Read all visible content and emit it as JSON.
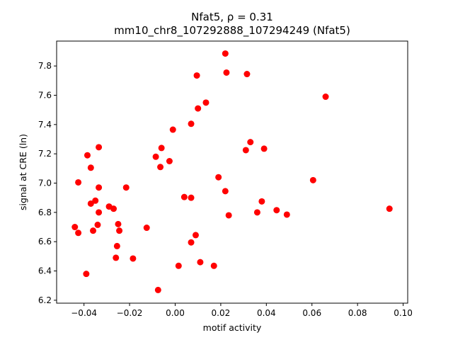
{
  "chart_data": {
    "type": "scatter",
    "title_line1": "Nfat5, ρ = 0.31",
    "title_line2": "mm10_chr8_107292888_107294249 (Nfat5)",
    "xlabel": "motif activity",
    "ylabel": "signal at CRE (ln)",
    "xlim": [
      -0.052,
      0.102
    ],
    "ylim": [
      6.18,
      7.97
    ],
    "xticks": [
      -0.04,
      -0.02,
      0.0,
      0.02,
      0.04,
      0.06,
      0.08,
      0.1
    ],
    "xtick_labels": [
      "−0.04",
      "−0.02",
      "0.00",
      "0.02",
      "0.04",
      "0.06",
      "0.08",
      "0.10"
    ],
    "yticks": [
      6.2,
      6.4,
      6.6,
      6.8,
      7.0,
      7.2,
      7.4,
      7.6,
      7.8
    ],
    "ytick_labels": [
      "6.2",
      "6.4",
      "6.6",
      "6.8",
      "7.0",
      "7.2",
      "7.4",
      "7.6",
      "7.8"
    ],
    "marker_color": "#ff0000",
    "grid": false,
    "points": [
      {
        "x": 0.022,
        "y": 7.885
      },
      {
        "x": 0.0225,
        "y": 7.755
      },
      {
        "x": 0.0315,
        "y": 7.745
      },
      {
        "x": 0.0095,
        "y": 7.735
      },
      {
        "x": 0.066,
        "y": 7.59
      },
      {
        "x": 0.0135,
        "y": 7.55
      },
      {
        "x": 0.01,
        "y": 7.51
      },
      {
        "x": 0.007,
        "y": 7.405
      },
      {
        "x": -0.001,
        "y": 7.365
      },
      {
        "x": 0.033,
        "y": 7.28
      },
      {
        "x": -0.0335,
        "y": 7.245
      },
      {
        "x": -0.006,
        "y": 7.24
      },
      {
        "x": 0.039,
        "y": 7.235
      },
      {
        "x": 0.031,
        "y": 7.225
      },
      {
        "x": -0.0385,
        "y": 7.19
      },
      {
        "x": -0.0085,
        "y": 7.18
      },
      {
        "x": -0.0025,
        "y": 7.15
      },
      {
        "x": -0.0065,
        "y": 7.11
      },
      {
        "x": -0.037,
        "y": 7.105
      },
      {
        "x": 0.019,
        "y": 7.04
      },
      {
        "x": 0.0605,
        "y": 7.02
      },
      {
        "x": -0.0425,
        "y": 7.005
      },
      {
        "x": -0.0335,
        "y": 6.97
      },
      {
        "x": -0.0215,
        "y": 6.97
      },
      {
        "x": 0.022,
        "y": 6.945
      },
      {
        "x": 0.004,
        "y": 6.905
      },
      {
        "x": 0.007,
        "y": 6.9
      },
      {
        "x": -0.035,
        "y": 6.88
      },
      {
        "x": 0.038,
        "y": 6.875
      },
      {
        "x": -0.037,
        "y": 6.86
      },
      {
        "x": -0.029,
        "y": 6.84
      },
      {
        "x": -0.027,
        "y": 6.825
      },
      {
        "x": 0.094,
        "y": 6.825
      },
      {
        "x": 0.0445,
        "y": 6.815
      },
      {
        "x": -0.0335,
        "y": 6.8
      },
      {
        "x": 0.036,
        "y": 6.8
      },
      {
        "x": 0.049,
        "y": 6.785
      },
      {
        "x": 0.0235,
        "y": 6.78
      },
      {
        "x": -0.025,
        "y": 6.72
      },
      {
        "x": -0.034,
        "y": 6.715
      },
      {
        "x": -0.044,
        "y": 6.7
      },
      {
        "x": -0.0125,
        "y": 6.695
      },
      {
        "x": -0.036,
        "y": 6.675
      },
      {
        "x": -0.0245,
        "y": 6.675
      },
      {
        "x": -0.0425,
        "y": 6.66
      },
      {
        "x": 0.009,
        "y": 6.645
      },
      {
        "x": 0.007,
        "y": 6.595
      },
      {
        "x": -0.0255,
        "y": 6.57
      },
      {
        "x": -0.026,
        "y": 6.49
      },
      {
        "x": -0.0185,
        "y": 6.485
      },
      {
        "x": 0.011,
        "y": 6.46
      },
      {
        "x": 0.0015,
        "y": 6.435
      },
      {
        "x": 0.017,
        "y": 6.435
      },
      {
        "x": -0.039,
        "y": 6.38
      },
      {
        "x": -0.0075,
        "y": 6.27
      }
    ]
  }
}
